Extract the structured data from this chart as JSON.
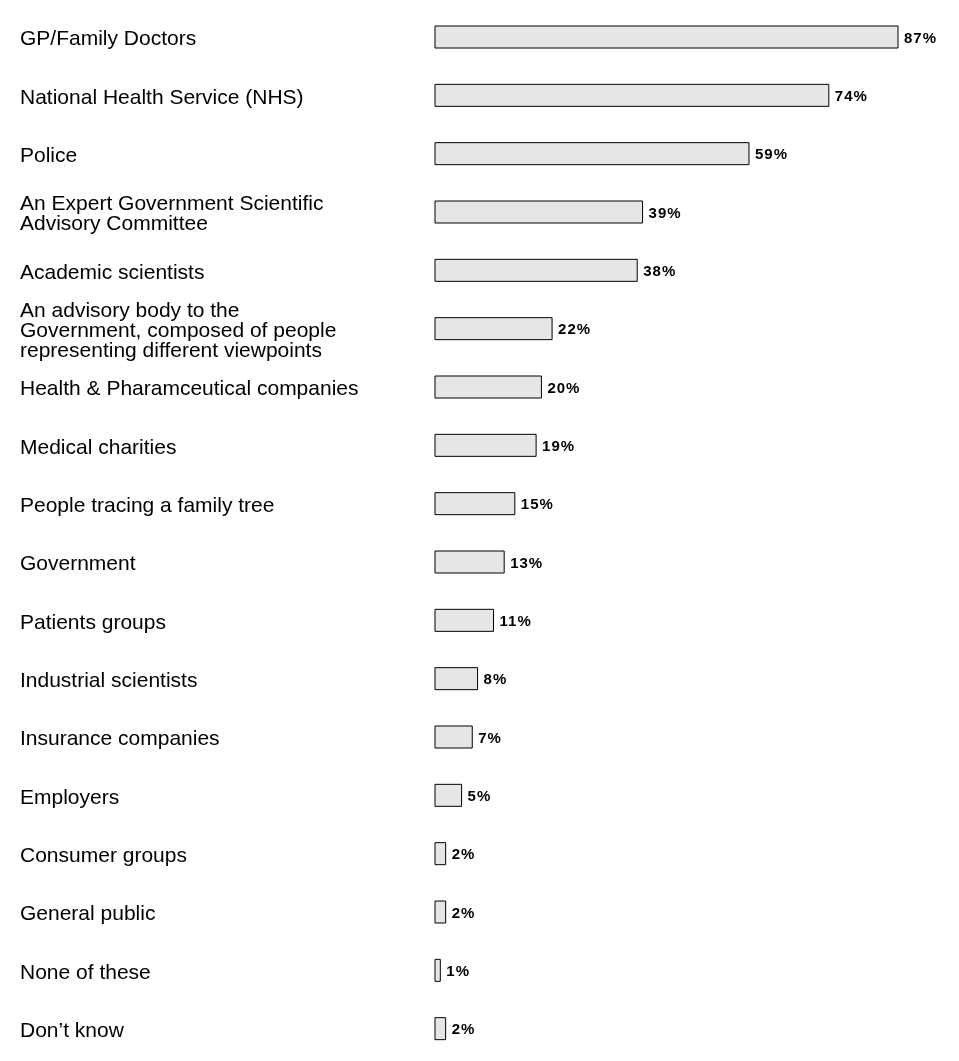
{
  "chart_data": {
    "type": "bar",
    "orientation": "horizontal",
    "categories": [
      "GP/Family Doctors",
      "National Health Service (NHS)",
      "Police",
      "An Expert Government Scientific Advisory Committee",
      "Academic scientists",
      "An advisory body to the Government, composed of people representing different viewpoints",
      "Health & Pharamceutical companies",
      "Medical charities",
      "People tracing a family tree",
      "Government",
      "Patients groups",
      "Industrial scientists",
      "Insurance companies",
      "Employers",
      "Consumer groups",
      "General public",
      "None of these",
      "Don’t know"
    ],
    "values": [
      87,
      74,
      59,
      39,
      38,
      22,
      20,
      19,
      15,
      13,
      11,
      8,
      7,
      5,
      2,
      2,
      1,
      2
    ],
    "value_labels": [
      "87%",
      "74%",
      "59%",
      "39%",
      "38%",
      "22%",
      "20%",
      "19%",
      "15%",
      "13%",
      "11%",
      "8%",
      "7%",
      "5%",
      "2%",
      "2%",
      "1%",
      "2%"
    ],
    "color": "#e6e6e6",
    "grid": false,
    "legend": false
  }
}
